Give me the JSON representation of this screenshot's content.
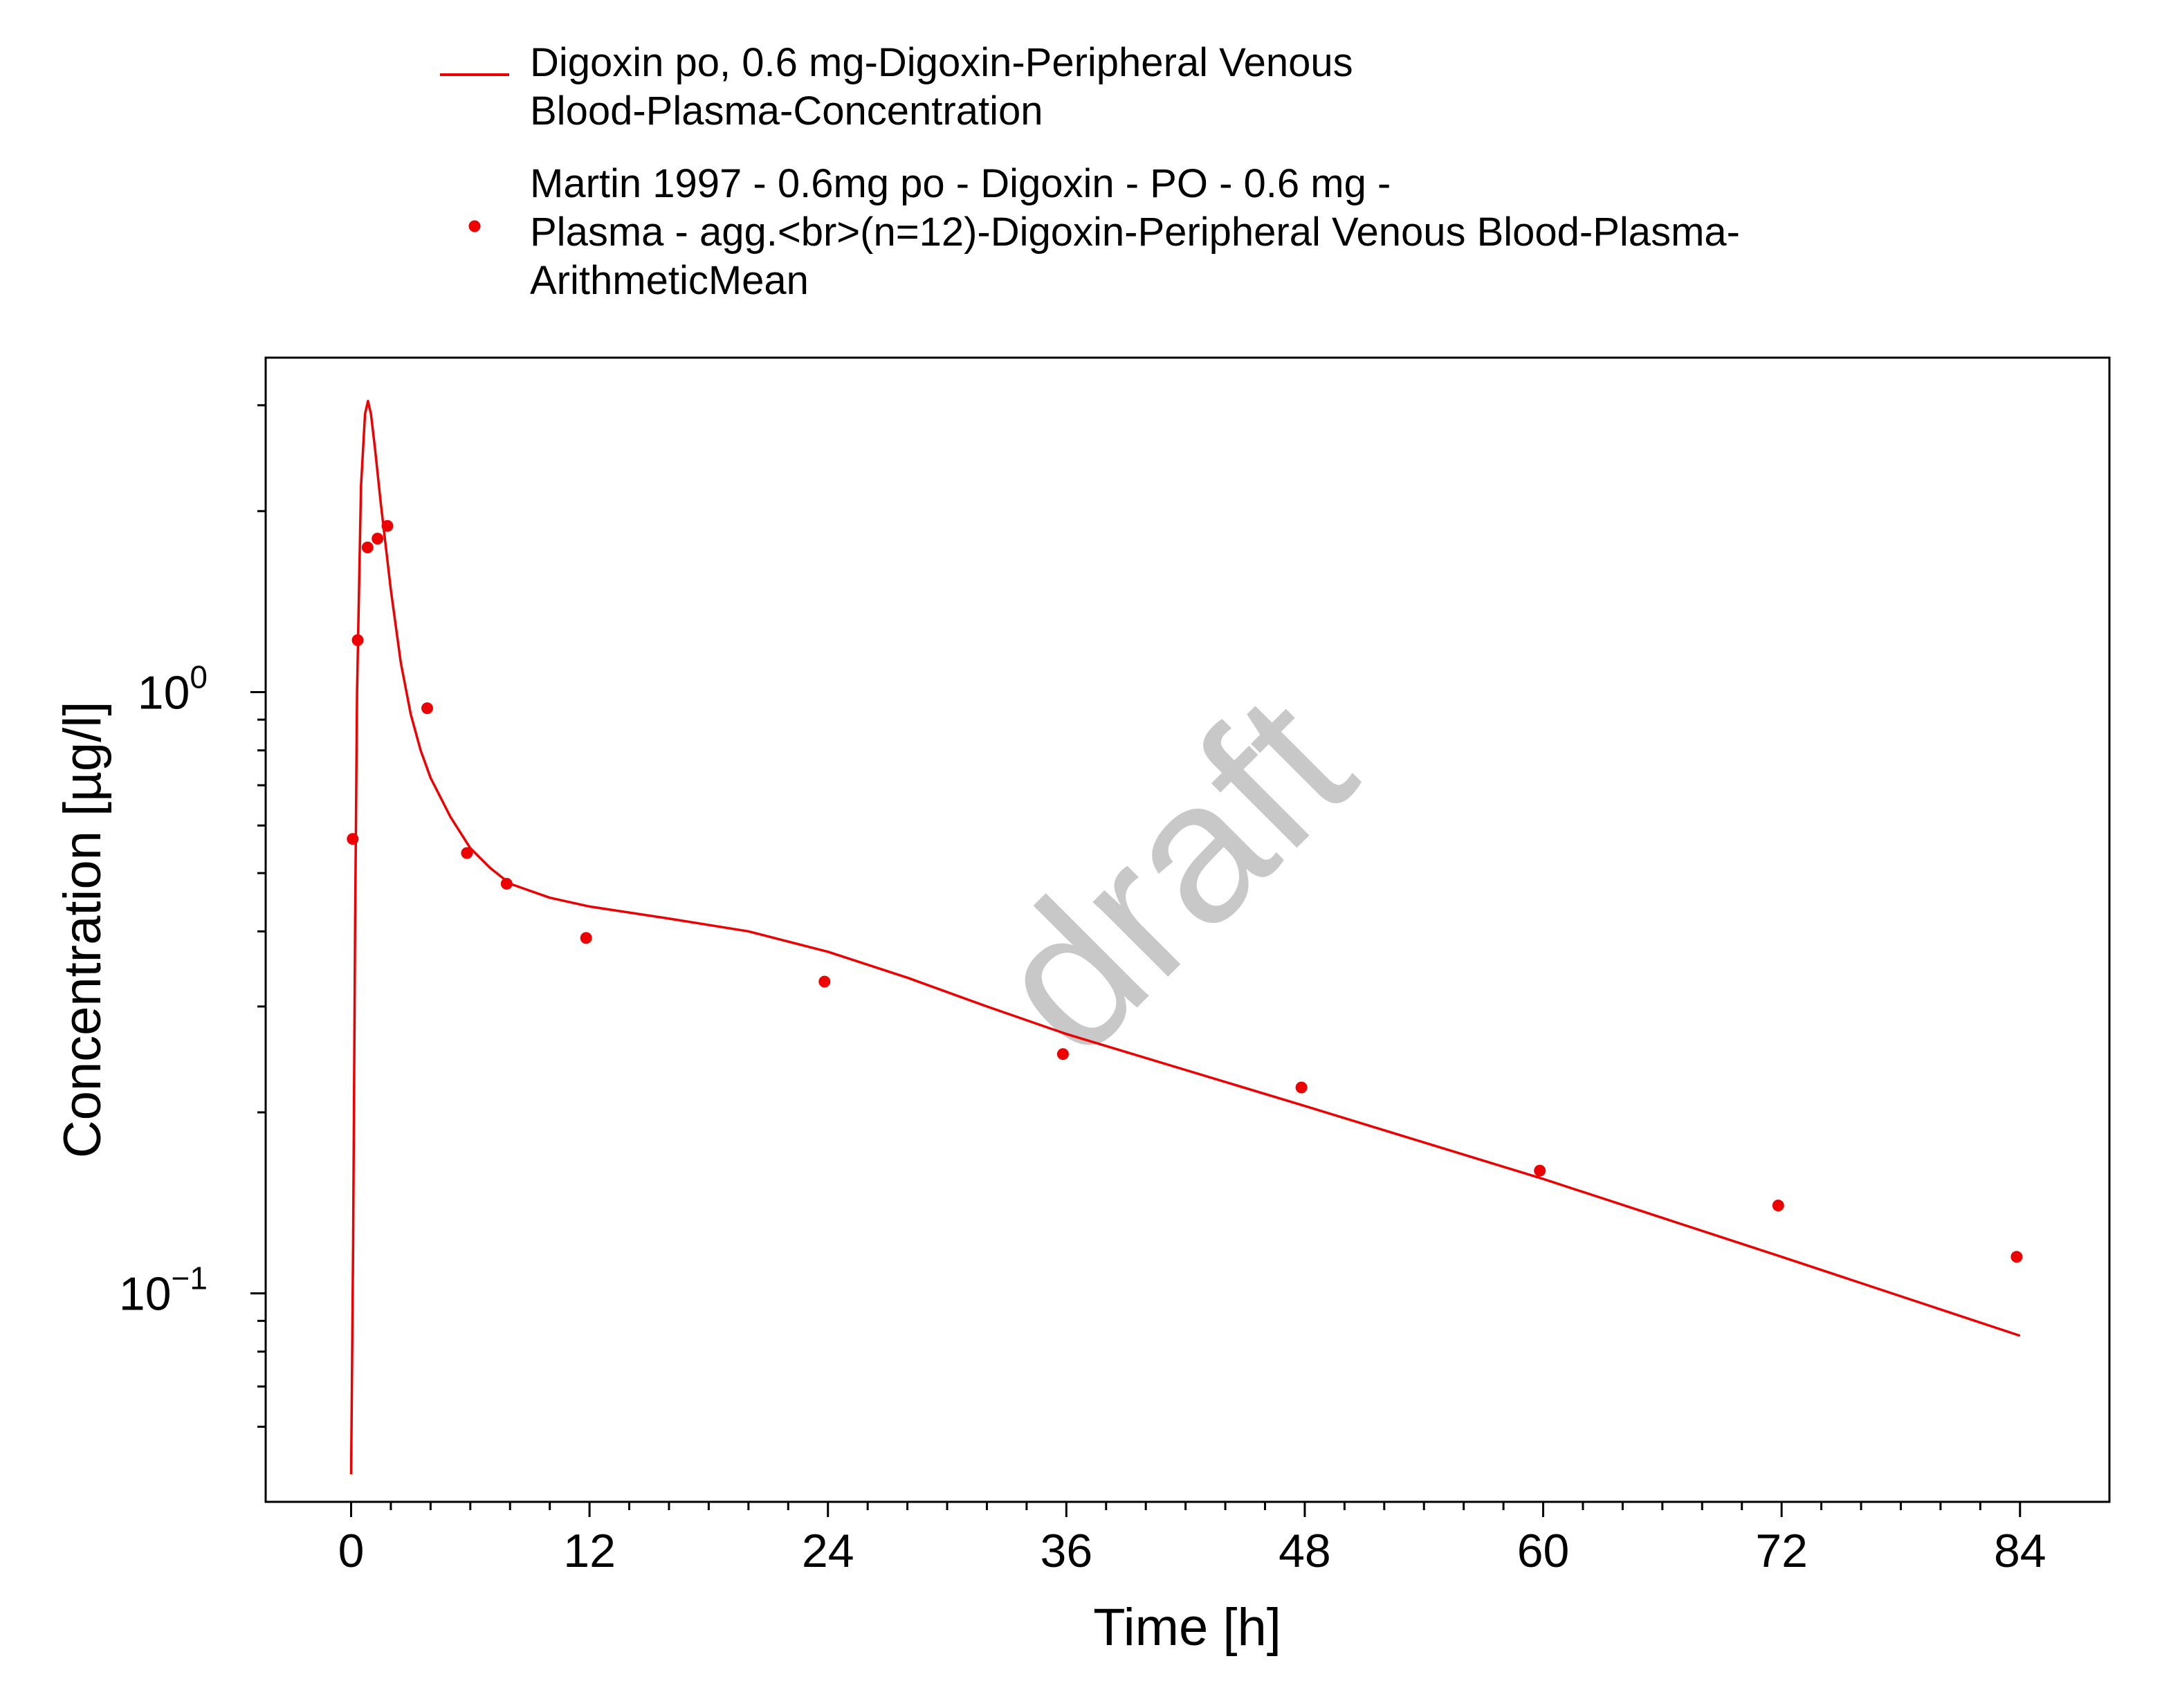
{
  "chart_data": {
    "type": "line",
    "title": "",
    "xlabel": "Time [h]",
    "ylabel": "Concentration [µg/l]",
    "y_scale": "log",
    "xlim": [
      -4.3,
      88.5
    ],
    "ylim": [
      0.045,
      3.6
    ],
    "x_ticks": [
      0,
      12,
      24,
      36,
      48,
      60,
      72,
      84
    ],
    "x_tick_labels": [
      "0",
      "12",
      "24",
      "36",
      "48",
      "60",
      "72",
      "84"
    ],
    "y_major_ticks": [
      {
        "value": 1.0,
        "base": "10",
        "exponent": "0"
      },
      {
        "value": 0.1,
        "base": "10",
        "exponent": "−1"
      }
    ],
    "y_minor_ticks": [
      0.06,
      0.07,
      0.08,
      0.09,
      0.2,
      0.3,
      0.4,
      0.5,
      0.6,
      0.7,
      0.8,
      0.9,
      2,
      3
    ],
    "grid": false,
    "legend_position": "top",
    "watermark": "draft",
    "colors": {
      "series": "#ee0000",
      "axis": "#000000",
      "watermark": "#c8c8c8"
    },
    "series": [
      {
        "name": "Digoxin po, 0.6 mg-Digoxin-Peripheral Venous Blood-Plasma-Concentration",
        "legend_lines": [
          "Digoxin po, 0.6 mg-Digoxin-Peripheral Venous",
          "Blood-Plasma-Concentration"
        ],
        "style": "line",
        "x": [
          0,
          0.1,
          0.2,
          0.3,
          0.5,
          0.7,
          0.85,
          1.0,
          1.2,
          1.5,
          2.0,
          2.5,
          3.0,
          3.5,
          4.0,
          5.0,
          6.0,
          7.0,
          8.0,
          10.0,
          12.0,
          16.0,
          20.0,
          24.0,
          28.0,
          32.0,
          36.0,
          48.0,
          60.0,
          72.0,
          84.0
        ],
        "y": [
          0.05,
          0.12,
          0.4,
          1.0,
          2.2,
          2.9,
          3.05,
          2.9,
          2.55,
          2.05,
          1.48,
          1.12,
          0.92,
          0.8,
          0.72,
          0.62,
          0.55,
          0.51,
          0.48,
          0.455,
          0.44,
          0.42,
          0.4,
          0.37,
          0.335,
          0.3,
          0.27,
          0.205,
          0.155,
          0.115,
          0.085
        ]
      },
      {
        "name": "Martin 1997 - 0.6mg po - Digoxin - PO - 0.6 mg - Plasma - agg.<br>(n=12)-Digoxin-Peripheral Venous Blood-Plasma-ArithmeticMean",
        "legend_lines": [
          "Martin 1997 - 0.6mg po - Digoxin - PO - 0.6 mg -",
          "Plasma - agg.<br>(n=12)-Digoxin-Peripheral Venous Blood-Plasma-",
          "ArithmeticMean"
        ],
        "style": "scatter",
        "x": [
          0.08,
          0.33,
          0.83,
          1.33,
          1.83,
          3.83,
          5.83,
          7.83,
          11.83,
          23.83,
          35.83,
          47.83,
          59.83,
          71.83,
          83.83
        ],
        "y": [
          0.57,
          1.22,
          1.74,
          1.8,
          1.89,
          0.94,
          0.54,
          0.48,
          0.39,
          0.33,
          0.25,
          0.22,
          0.16,
          0.14,
          0.115
        ]
      }
    ]
  }
}
